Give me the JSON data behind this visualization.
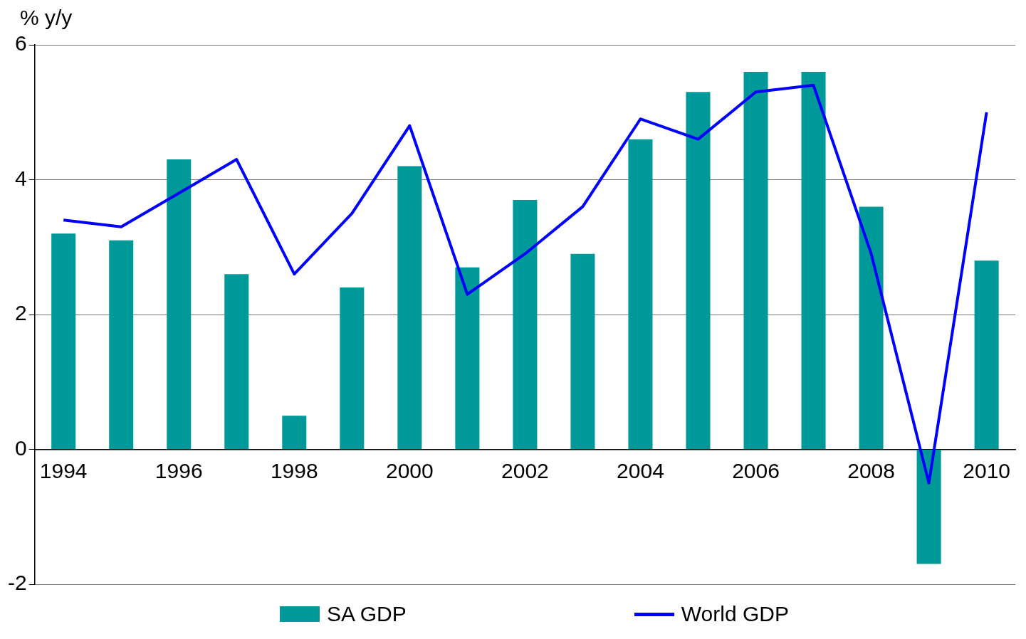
{
  "chart_data": {
    "type": "bar",
    "ylabel": "% y/y",
    "categories": [
      "1994",
      null,
      "1996",
      null,
      "1998",
      null,
      "2000",
      null,
      "2002",
      null,
      "2004",
      null,
      "2006",
      null,
      "2008",
      null,
      "2010"
    ],
    "series": [
      {
        "name": "SA GDP",
        "type": "bar",
        "color": "#009999",
        "values": [
          3.2,
          3.1,
          4.3,
          2.6,
          0.5,
          2.4,
          4.2,
          2.7,
          3.7,
          2.9,
          4.6,
          5.3,
          5.6,
          5.6,
          3.6,
          -1.7,
          2.8
        ]
      },
      {
        "name": "World GDP",
        "type": "line",
        "color": "#0000ff",
        "values": [
          3.4,
          3.3,
          3.8,
          4.3,
          2.6,
          3.5,
          4.8,
          2.3,
          2.9,
          3.6,
          4.9,
          4.6,
          5.3,
          5.4,
          2.9,
          -0.5,
          5.0
        ]
      }
    ],
    "ylim": [
      -2,
      6
    ],
    "yticks": [
      -2,
      0,
      2,
      4,
      6
    ],
    "grid": "y",
    "legend": "bottom",
    "marker": "none",
    "line_style": "solid"
  }
}
